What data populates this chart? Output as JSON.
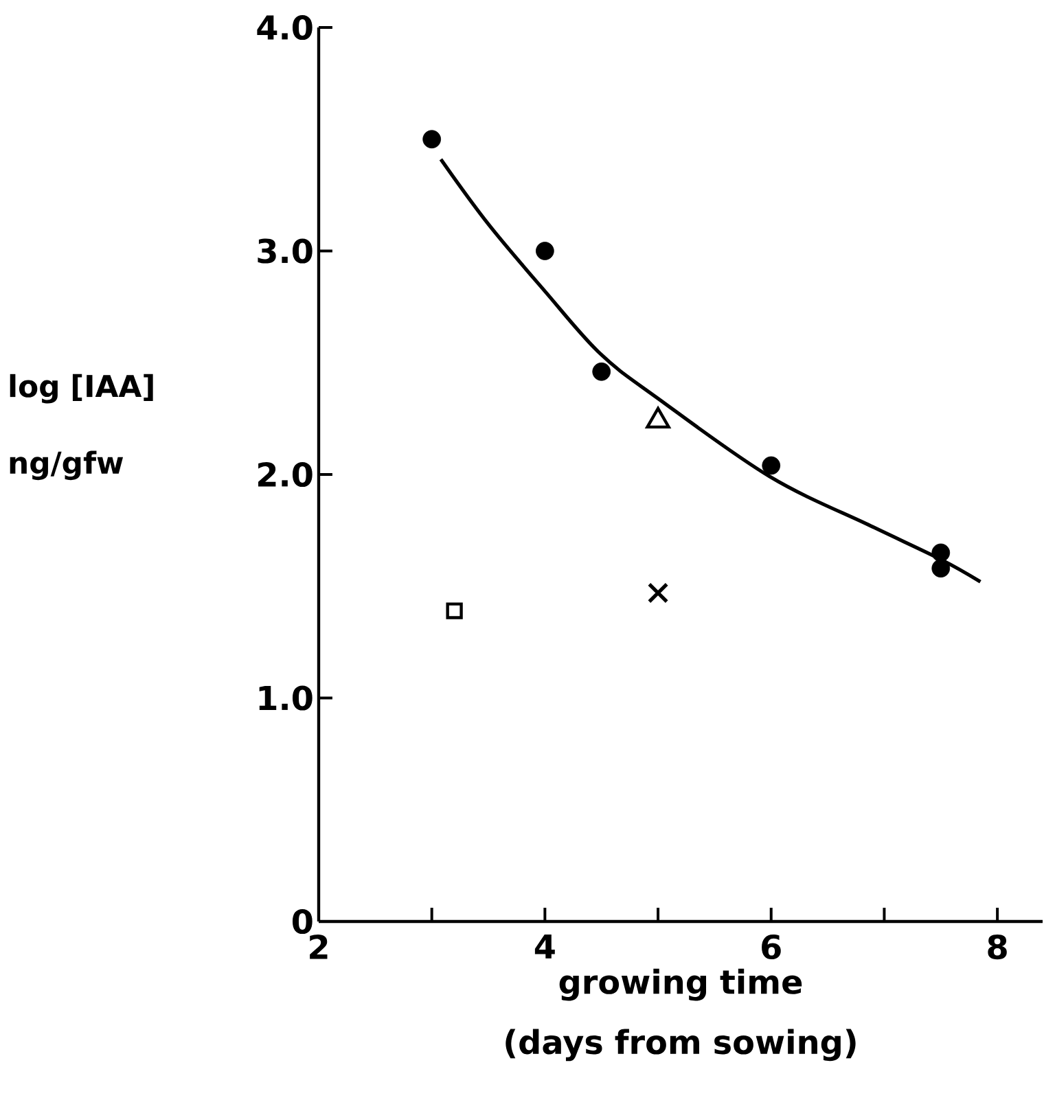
{
  "chart_data": {
    "type": "scatter",
    "xlabel": "growing time (days from sowing)",
    "ylabel": "log [IAA] ng/gfw",
    "xlim": [
      2,
      8.4
    ],
    "ylim": [
      0,
      4.0
    ],
    "xticks": [
      2,
      {
        "value": 3,
        "label": null
      },
      4,
      {
        "value": 5,
        "label": null
      },
      6,
      {
        "value": 7,
        "label": null
      },
      8
    ],
    "yticks": [
      0,
      {
        "value": 1,
        "label": "1.0"
      },
      {
        "value": 2,
        "label": "2.0"
      },
      {
        "value": 3,
        "label": "3.0"
      },
      {
        "value": 4,
        "label": "4.0"
      }
    ],
    "series": [
      {
        "marker": "circle",
        "color": "#000000",
        "x": [
          3,
          4,
          4.5,
          6,
          7.5,
          7.5
        ],
        "values": [
          3.5,
          3.0,
          2.46,
          2.04,
          1.65,
          1.58
        ]
      },
      {
        "marker": "triangle",
        "color": "#000000",
        "x": [
          5
        ],
        "values": [
          2.24
        ]
      },
      {
        "marker": "square",
        "color": "#000000",
        "x": [
          3.2
        ],
        "values": [
          1.39
        ]
      },
      {
        "marker": "cross",
        "color": "#000000",
        "x": [
          5
        ],
        "values": [
          1.47
        ]
      },
      {
        "type": "line",
        "marker": "none",
        "line_style": "solid",
        "color": "#000000",
        "x": [
          3.08,
          3.5,
          4,
          4.49,
          5.0,
          5.99,
          6.88,
          7.5,
          7.85
        ],
        "values": [
          3.41,
          3.12,
          2.82,
          2.54,
          2.34,
          1.99,
          1.77,
          1.62,
          1.52
        ]
      }
    ]
  }
}
